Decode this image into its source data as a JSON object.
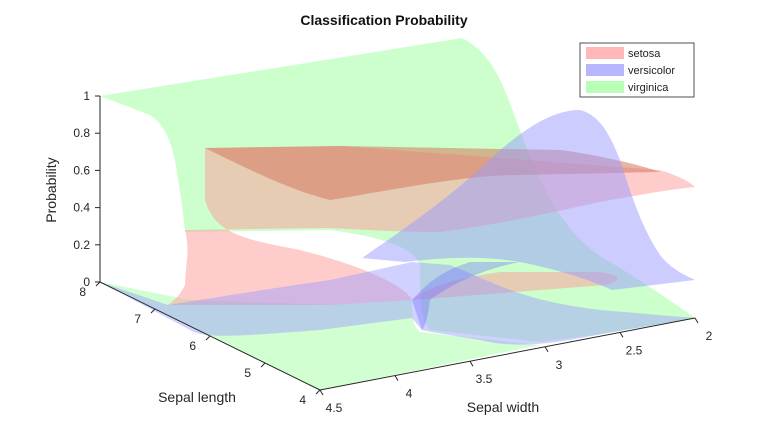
{
  "chart_data": {
    "type": "area",
    "title": "Classification Probability",
    "xlabel": "Sepal width",
    "ylabel": "Sepal length",
    "zlabel": "Probability",
    "x_ticks": [
      "2",
      "2.5",
      "3",
      "3.5",
      "4",
      "4.5"
    ],
    "y_ticks": [
      "4",
      "5",
      "6",
      "7",
      "8"
    ],
    "z_ticks": [
      "0",
      "0.2",
      "0.4",
      "0.6",
      "0.8",
      "1"
    ],
    "xlim": [
      2,
      4.5
    ],
    "ylim": [
      4,
      8
    ],
    "zlim": [
      0,
      1
    ],
    "grid": false,
    "legend_position": "top-right",
    "series": [
      {
        "name": "setosa",
        "color": "#ff9999"
      },
      {
        "name": "versicolor",
        "color": "#9999ff"
      },
      {
        "name": "virginica",
        "color": "#99ff99"
      }
    ]
  }
}
